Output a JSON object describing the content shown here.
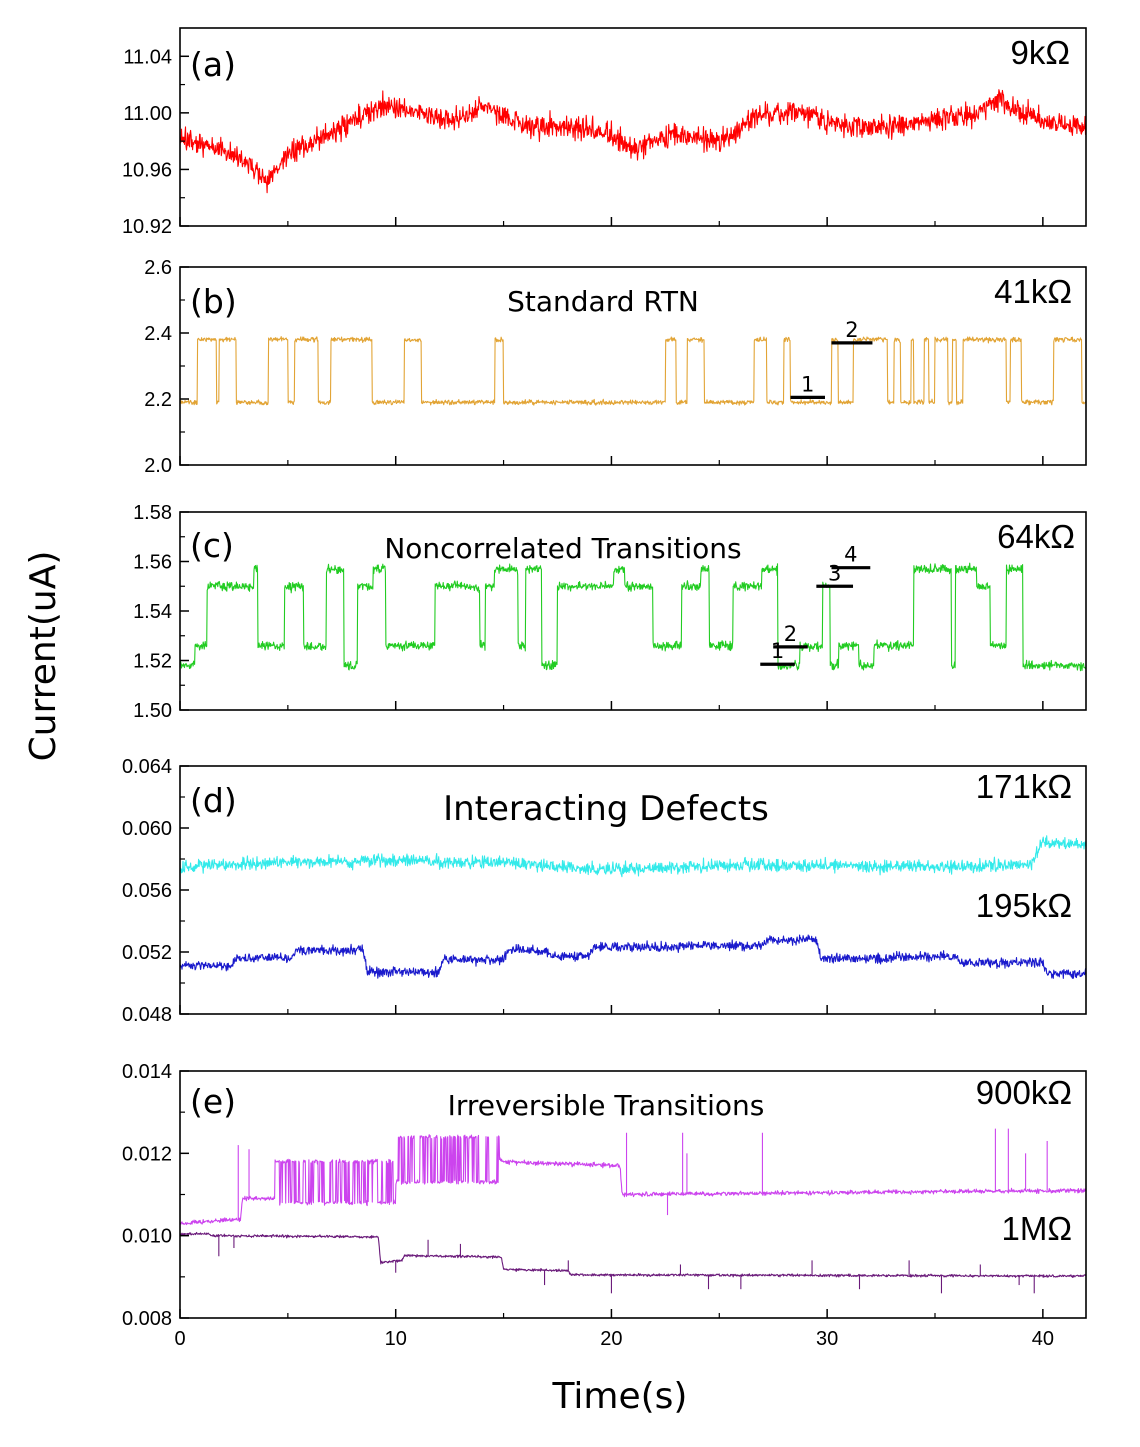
{
  "figure": {
    "ylabel": "Current(uA)",
    "xlabel": "Time(s)",
    "x_ticks": [
      0,
      10,
      20,
      30,
      40
    ],
    "xlim": [
      0,
      42
    ]
  },
  "chart_data": [
    {
      "type": "line",
      "panel": "(a)",
      "resistance": "9kΩ",
      "annotation": "",
      "ylim": [
        10.92,
        11.06
      ],
      "y_ticks": [
        "10.92",
        "10.96",
        "11.00",
        "11.04"
      ],
      "series": [
        {
          "resistance": "9kΩ",
          "color": "#ff0000",
          "noise": 0.008,
          "seed": 11,
          "x": [
            0,
            2,
            3.5,
            4,
            5,
            7,
            8,
            9.5,
            11,
            13,
            14,
            16,
            18,
            20,
            21,
            23,
            25,
            26,
            27,
            29,
            31,
            33,
            35,
            37,
            38,
            39,
            40,
            41.8
          ],
          "y": [
            10.98,
            10.975,
            10.96,
            10.95,
            10.97,
            10.985,
            10.995,
            11.005,
            11.0,
            10.995,
            11.005,
            10.99,
            10.99,
            10.985,
            10.975,
            10.985,
            10.98,
            10.99,
            11.0,
            11.0,
            10.99,
            10.99,
            10.995,
            11.0,
            11.01,
            11.0,
            10.995,
            10.99
          ]
        }
      ],
      "levels": []
    },
    {
      "type": "line",
      "panel": "(b)",
      "resistance": "41kΩ",
      "annotation": "Standard RTN",
      "ylim": [
        2.0,
        2.6
      ],
      "y_ticks": [
        "2.0",
        "2.2",
        "2.4",
        "2.6"
      ],
      "series": [
        {
          "resistance": "41kΩ",
          "color": "#e2a435",
          "noise": 0.007,
          "seed": 23,
          "levels": [
            2.19,
            2.38
          ],
          "state_changes": [
            0.8,
            1.7,
            1.8,
            2.6,
            4.1,
            5.0,
            5.3,
            6.4,
            7.0,
            8.9,
            10.4,
            11.2,
            14.6,
            15.0,
            22.5,
            23.0,
            23.5,
            24.3,
            26.6,
            27.2,
            28.0,
            28.3,
            30.2,
            30.5,
            31.2,
            32.8,
            33.1,
            33.4,
            33.9,
            34.0,
            34.5,
            34.7,
            35.0,
            35.6,
            35.8,
            36.0,
            36.3,
            38.3,
            38.5,
            39.0,
            40.5,
            41.8
          ],
          "x": [],
          "y": []
        }
      ],
      "levels": [
        {
          "label": "1",
          "x": [
            28.3,
            29.9
          ],
          "y": 2.205
        },
        {
          "label": "2",
          "x": [
            30.2,
            32.1
          ],
          "y": 2.37
        }
      ]
    },
    {
      "type": "line",
      "panel": "(c)",
      "resistance": "64kΩ",
      "annotation": "Noncorrelated Transitions",
      "ylim": [
        1.5,
        1.58
      ],
      "y_ticks": [
        "1.50",
        "1.52",
        "1.54",
        "1.56",
        "1.58"
      ],
      "series": [
        {
          "resistance": "64kΩ",
          "color": "#22cc22",
          "noise": 0.0018,
          "seed": 37,
          "levels": [
            1.518,
            1.526,
            1.55,
            1.557
          ],
          "dwell": 0.55,
          "x": [],
          "y": []
        }
      ],
      "levels": [
        {
          "label": "1",
          "x": [
            26.9,
            28.5
          ],
          "y": 1.5185
        },
        {
          "label": "2",
          "x": [
            27.5,
            29.1
          ],
          "y": 1.5255
        },
        {
          "label": "3",
          "x": [
            29.5,
            31.2
          ],
          "y": 1.55
        },
        {
          "label": "4",
          "x": [
            30.2,
            32.0
          ],
          "y": 1.5575
        }
      ]
    },
    {
      "type": "line",
      "panel": "(d)",
      "resistance": "171kΩ",
      "annotation": "Interacting Defects",
      "ylim": [
        0.048,
        0.064
      ],
      "y_ticks": [
        "0.048",
        "0.052",
        "0.056",
        "0.060",
        "0.064"
      ],
      "series": [
        {
          "resistance": "171kΩ",
          "color": "#33eaea",
          "noise": 0.0004,
          "seed": 51,
          "x": [
            0,
            5,
            10,
            15,
            17,
            19.5,
            22,
            25,
            30,
            35,
            39.5,
            40,
            41.8
          ],
          "y": [
            0.0575,
            0.0578,
            0.0579,
            0.0578,
            0.0576,
            0.0573,
            0.0574,
            0.0576,
            0.0576,
            0.0575,
            0.0577,
            0.0591,
            0.0589
          ]
        },
        {
          "resistance": "195kΩ",
          "color": "#1a1acc",
          "noise": 0.0003,
          "seed": 67,
          "x": [
            0,
            2.4,
            2.6,
            5.2,
            5.4,
            8.5,
            8.7,
            12.0,
            12.2,
            15.0,
            15.2,
            17.0,
            17.2,
            19.0,
            19.2,
            23.0,
            23.2,
            27.0,
            27.2,
            29.5,
            29.7,
            33.0,
            33.2,
            36.0,
            36.2,
            40.0,
            40.2,
            41.8
          ],
          "y": [
            0.0511,
            0.0511,
            0.0516,
            0.0516,
            0.0521,
            0.0521,
            0.0507,
            0.0507,
            0.0515,
            0.0515,
            0.0521,
            0.0521,
            0.0517,
            0.0517,
            0.0523,
            0.0523,
            0.0524,
            0.0524,
            0.0528,
            0.0528,
            0.0516,
            0.0516,
            0.0517,
            0.0517,
            0.0513,
            0.0513,
            0.0506,
            0.0506
          ]
        }
      ],
      "levels": []
    },
    {
      "type": "line",
      "panel": "(e)",
      "resistance": "900kΩ",
      "annotation": "Irreversible Transitions",
      "ylim": [
        0.008,
        0.014
      ],
      "y_ticks": [
        "0.008",
        "0.010",
        "0.012",
        "0.014"
      ],
      "series": [
        {
          "resistance": "900kΩ",
          "color": "#cc44ee",
          "noise": 5e-05,
          "seed": 79,
          "x": [
            0,
            2.8,
            2.9,
            4.4,
            4.5,
            10.0,
            10.1,
            14.8,
            14.9,
            20.4,
            20.5,
            41.8
          ],
          "y": [
            0.0103,
            0.0104,
            0.0109,
            0.0109,
            0.0113,
            0.0113,
            0.0119,
            0.0119,
            0.0118,
            0.0117,
            0.011,
            0.0111
          ],
          "telegraph": [
            [
              4.4,
              10.0,
              0.0108,
              0.0118
            ],
            [
              10.0,
              14.8,
              0.0113,
              0.0124
            ]
          ],
          "spikes": [
            [
              2.7,
              0.0122
            ],
            [
              3.2,
              0.0121
            ],
            [
              15.2,
              0.0118
            ],
            [
              15.6,
              0.0117
            ],
            [
              16.1,
              0.0118
            ],
            [
              17.0,
              0.0117
            ],
            [
              20.7,
              0.0125
            ],
            [
              22.6,
              0.0105
            ],
            [
              23.3,
              0.0125
            ],
            [
              23.5,
              0.012
            ],
            [
              27.0,
              0.0125
            ],
            [
              37.8,
              0.0126
            ],
            [
              38.4,
              0.0126
            ],
            [
              39.2,
              0.012
            ],
            [
              40.2,
              0.0123
            ]
          ]
        },
        {
          "resistance": "1MΩ",
          "color": "#6a1a7a",
          "noise": 3e-05,
          "seed": 91,
          "x": [
            0,
            1.3,
            1.4,
            9.2,
            9.3,
            10.3,
            10.4,
            14.9,
            15.0,
            18.0,
            18.1,
            41.8
          ],
          "y": [
            0.01003,
            0.01005,
            0.01,
            0.00997,
            0.00935,
            0.0094,
            0.00952,
            0.00948,
            0.00918,
            0.00915,
            0.00905,
            0.00902
          ],
          "telegraph": [],
          "spikes": [
            [
              1.8,
              0.0095
            ],
            [
              2.5,
              0.0097
            ],
            [
              10.0,
              0.0091
            ],
            [
              11.5,
              0.0099
            ],
            [
              13.0,
              0.0098
            ],
            [
              16.9,
              0.0088
            ],
            [
              18.0,
              0.0094
            ],
            [
              20.0,
              0.0086
            ],
            [
              23.2,
              0.0093
            ],
            [
              24.5,
              0.0087
            ],
            [
              26.0,
              0.0087
            ],
            [
              29.3,
              0.0094
            ],
            [
              31.5,
              0.0087
            ],
            [
              33.8,
              0.0094
            ],
            [
              35.3,
              0.0086
            ],
            [
              37.1,
              0.0093
            ],
            [
              38.9,
              0.0088
            ],
            [
              39.6,
              0.0086
            ]
          ]
        }
      ],
      "levels": []
    }
  ]
}
